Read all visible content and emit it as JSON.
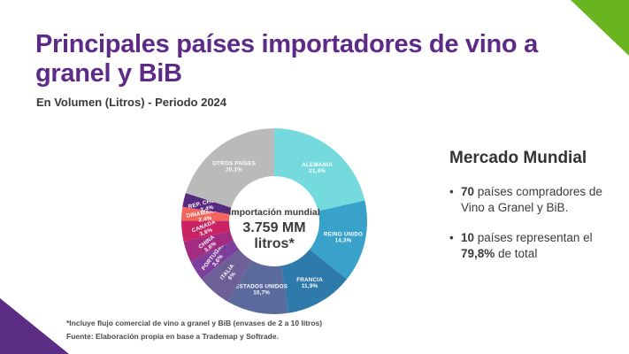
{
  "slide": {
    "title": "Principales países importadores de vino a granel y BiB",
    "subtitle": "En Volumen (Litros) - Periodo 2024",
    "accent_purple": "#5e2a87",
    "corner_green": "#69b51f",
    "corner_purple": "#5b2d84",
    "text_dark": "#3b3b3b"
  },
  "chart_data": {
    "type": "pie",
    "donut": true,
    "title": "Importación mundial 3.759 MM litros*",
    "center_label": {
      "line1": "Importación mundial",
      "line2": "3.759 MM",
      "line3": "litros*"
    },
    "categories": [
      "ALEMANIA",
      "REINO UNIDO",
      "FRANCIA",
      "ESTADOS UNIDOS",
      "ITALIA",
      "PORTUGAL",
      "CHINA",
      "CANADÁ",
      "DINAMARCA",
      "REP. CHECA",
      "OTROS PAÍSES"
    ],
    "values": [
      21.4,
      14.3,
      11.9,
      10.7,
      6,
      3.6,
      3.6,
      3.6,
      2.4,
      2.4,
      20.1
    ],
    "labels": [
      "21,4%",
      "14,3%",
      "11,9%",
      "10,7%",
      "6%",
      "3,6%",
      "3,6%",
      "3,6%",
      "2,4%",
      "2,4%",
      "20,1%"
    ],
    "colors": [
      "#74dade",
      "#39a2cb",
      "#2e7aab",
      "#5b6a9c",
      "#6c6097",
      "#7e3e9c",
      "#a12c80",
      "#c92363",
      "#f4655d",
      "#57297f",
      "#bababa"
    ],
    "label_color": "#ffffff",
    "legend": "none"
  },
  "panel": {
    "heading": "Mercado Mundial",
    "bullets": [
      [
        {
          "t": "70",
          "b": true
        },
        {
          "t": " países compradores de Vino a Granel y BiB.",
          "b": false
        }
      ],
      [
        {
          "t": "10",
          "b": true
        },
        {
          "t": " países representan el ",
          "b": false
        },
        {
          "t": "79,8%",
          "b": true
        },
        {
          "t": " de total",
          "b": false
        }
      ]
    ]
  },
  "footer": {
    "note": "*Incluye flujo comercial de vino a granel y BiB (envases de 2 a 10 litros)",
    "source": "Fuente: Elaboración propia en base a Trademap y Softrade."
  }
}
